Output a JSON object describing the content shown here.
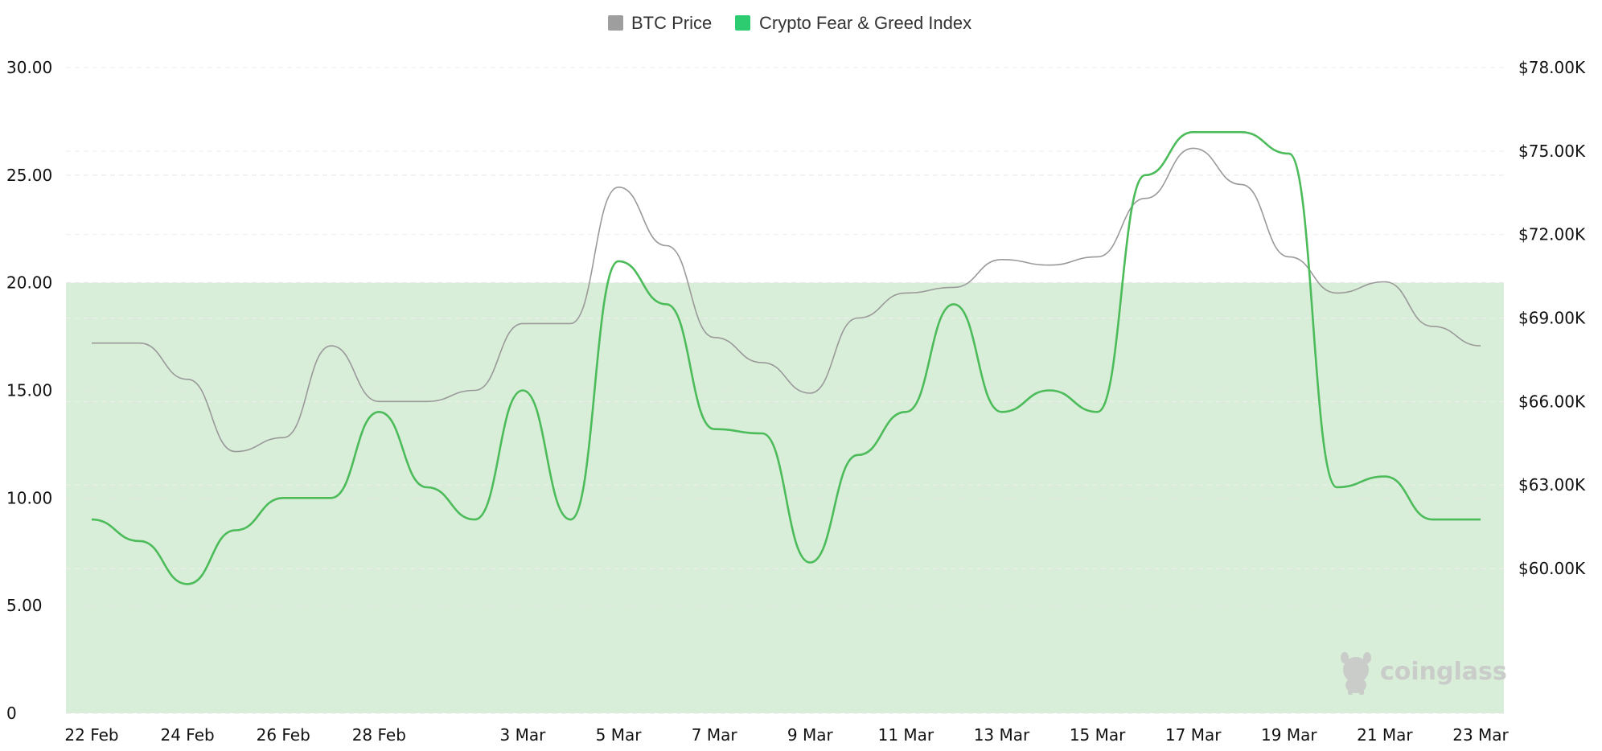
{
  "legend": {
    "items": [
      {
        "label": "BTC Price",
        "color": "#9e9e9e"
      },
      {
        "label": "Crypto Fear & Greed Index",
        "color": "#2ecc71"
      }
    ]
  },
  "watermark": {
    "text": "coinglass",
    "icon": "coinglass-mascot-icon"
  },
  "chart_data": {
    "type": "line",
    "x": [
      "22 Feb",
      "23 Feb",
      "24 Feb",
      "25 Feb",
      "26 Feb",
      "27 Feb",
      "28 Feb",
      "1 Mar",
      "2 Mar",
      "3 Mar",
      "4 Mar",
      "5 Mar",
      "6 Mar",
      "7 Mar",
      "8 Mar",
      "9 Mar",
      "10 Mar",
      "11 Mar",
      "12 Mar",
      "13 Mar",
      "14 Mar",
      "15 Mar",
      "16 Mar",
      "17 Mar",
      "18 Mar",
      "19 Mar",
      "20 Mar",
      "21 Mar",
      "22 Mar",
      "23 Mar"
    ],
    "x_tick_labels": [
      "22 Feb",
      "24 Feb",
      "26 Feb",
      "28 Feb",
      "3 Mar",
      "5 Mar",
      "7 Mar",
      "9 Mar",
      "11 Mar",
      "13 Mar",
      "15 Mar",
      "17 Mar",
      "19 Mar",
      "21 Mar",
      "23 Mar"
    ],
    "series": [
      {
        "name": "Crypto Fear & Greed Index",
        "axis": "left",
        "color": "#4cbb5a",
        "values": [
          9,
          8,
          6,
          8.5,
          10,
          10,
          14,
          10.5,
          9,
          15,
          9,
          21,
          19,
          13.2,
          13,
          7,
          12,
          14,
          19,
          14,
          15,
          14,
          25,
          27,
          27,
          26,
          10.5,
          11,
          9,
          9
        ]
      },
      {
        "name": "BTC Price",
        "axis": "right",
        "color": "#999999",
        "values": [
          68100,
          68100,
          66800,
          64200,
          64700,
          68000,
          66000,
          66000,
          66400,
          68800,
          68800,
          73700,
          71600,
          68300,
          67400,
          66300,
          69000,
          69900,
          70100,
          71100,
          70900,
          71200,
          73300,
          75100,
          73800,
          71200,
          69900,
          70300,
          68700,
          68000
        ]
      }
    ],
    "y_left": {
      "ticks": [
        "0",
        "5.00",
        "10.00",
        "15.00",
        "20.00",
        "25.00",
        "30.00"
      ],
      "min": 0,
      "max": 30
    },
    "y_right": {
      "ticks": [
        "$60.00K",
        "$63.00K",
        "$66.00K",
        "$69.00K",
        "$72.00K",
        "$75.00K",
        "$78.00K"
      ],
      "min": 54800,
      "max": 78000
    },
    "shaded_band": {
      "from": 0,
      "to": 20,
      "axis": "left",
      "color": "#d9eed9"
    },
    "grid": true,
    "legend_position": "top-center"
  }
}
